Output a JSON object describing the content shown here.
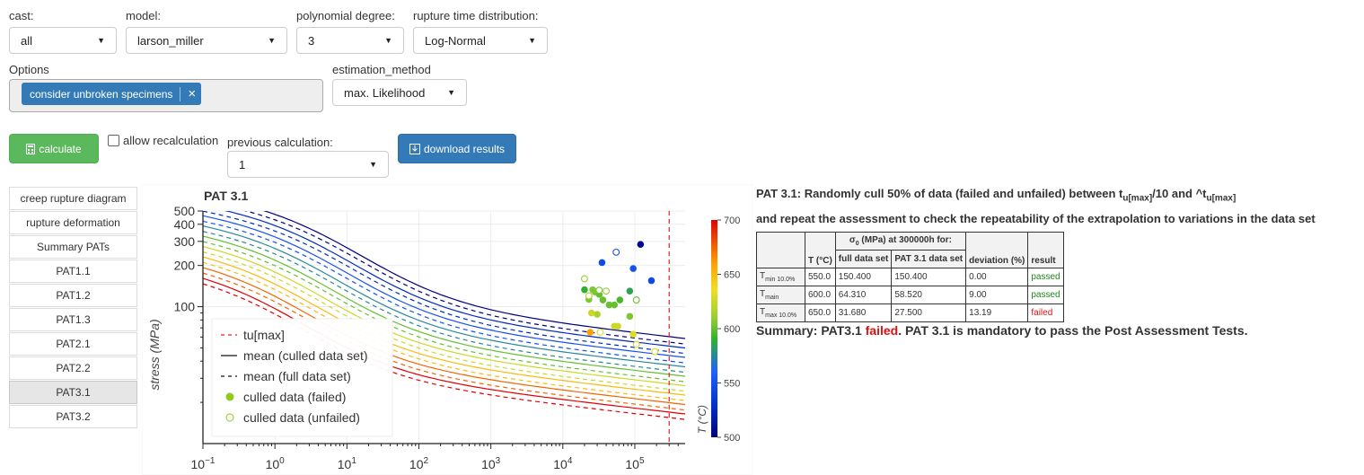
{
  "controls": {
    "cast": {
      "label": "cast:",
      "value": "all"
    },
    "model": {
      "label": "model:",
      "value": "larson_miller"
    },
    "degree": {
      "label": "polynomial degree:",
      "value": "3"
    },
    "dist": {
      "label": "rupture time distribution:",
      "value": "Log-Normal"
    },
    "options": {
      "label": "Options",
      "tag": "consider unbroken specimens",
      "tag_remove": "×"
    },
    "estimation": {
      "label": "estimation_method",
      "value": "max. Likelihood"
    },
    "calculate": "calculate",
    "allow_recalc": "allow recalculation",
    "previous": {
      "label": "previous calculation:",
      "value": "1"
    },
    "download": "download results"
  },
  "nav": [
    "creep rupture diagram",
    "rupture deformation",
    "Summary PATs",
    "PAT1.1",
    "PAT1.2",
    "PAT1.3",
    "PAT2.1",
    "PAT2.2",
    "PAT3.1",
    "PAT3.2"
  ],
  "nav_active": "PAT3.1",
  "icons": [
    "move-icon",
    "box-zoom-icon",
    "box-select-icon",
    "lasso-icon",
    "reset-icon",
    "save-icon",
    "hover-icon",
    "bokeh-logo-icon"
  ],
  "chart_data": {
    "type": "scatter",
    "title": "PAT 3.1",
    "ylabel": "stress (MPa)",
    "x_scale": "log",
    "y_scale": "log",
    "xlim": [
      0.1,
      500000
    ],
    "ylim": [
      10,
      500
    ],
    "x_ticks": [
      "10−1",
      "100",
      "101",
      "102",
      "103",
      "104",
      "105"
    ],
    "x_tick_values": [
      0.1,
      1,
      10,
      100,
      1000,
      10000,
      100000
    ],
    "y_ticks": [
      "500",
      "400",
      "300",
      "200",
      "100"
    ],
    "y_tick_values": [
      500,
      400,
      300,
      200,
      100
    ],
    "tu_max": 300000,
    "legend": [
      "tu[max]",
      "mean (culled data set)",
      "mean (full data set)",
      "culled data (failed)",
      "culled data (unfailed)"
    ],
    "colorbar": {
      "label": "T (°C)",
      "min": 500,
      "max": 700,
      "ticks": [
        700,
        650,
        600,
        550,
        500
      ]
    },
    "curve_temperatures": [
      500,
      525,
      550,
      575,
      600,
      625,
      650,
      675,
      700
    ],
    "failed_points": [
      {
        "x": 120000,
        "y": 285,
        "T": 505
      },
      {
        "x": 35000,
        "y": 210,
        "T": 545
      },
      {
        "x": 95000,
        "y": 190,
        "T": 550
      },
      {
        "x": 170000,
        "y": 155,
        "T": 545
      },
      {
        "x": 20000,
        "y": 133,
        "T": 590
      },
      {
        "x": 26000,
        "y": 133,
        "T": 605
      },
      {
        "x": 28000,
        "y": 128,
        "T": 605
      },
      {
        "x": 32000,
        "y": 123,
        "T": 600
      },
      {
        "x": 23000,
        "y": 113,
        "T": 605
      },
      {
        "x": 36000,
        "y": 112,
        "T": 600
      },
      {
        "x": 44000,
        "y": 103,
        "T": 600
      },
      {
        "x": 52000,
        "y": 103,
        "T": 600
      },
      {
        "x": 62000,
        "y": 112,
        "T": 595
      },
      {
        "x": 85000,
        "y": 130,
        "T": 585
      },
      {
        "x": 30000,
        "y": 88,
        "T": 615
      },
      {
        "x": 85000,
        "y": 85,
        "T": 605
      },
      {
        "x": 25000,
        "y": 90,
        "T": 625
      },
      {
        "x": 52000,
        "y": 72,
        "T": 625
      },
      {
        "x": 58000,
        "y": 72,
        "T": 625
      },
      {
        "x": 95000,
        "y": 63,
        "T": 630
      },
      {
        "x": 24000,
        "y": 65,
        "T": 660
      }
    ],
    "unfailed_points": [
      {
        "x": 55000,
        "y": 250,
        "T": 550
      },
      {
        "x": 20000,
        "y": 160,
        "T": 610
      },
      {
        "x": 32000,
        "y": 132,
        "T": 605
      },
      {
        "x": 40000,
        "y": 130,
        "T": 610
      },
      {
        "x": 23000,
        "y": 120,
        "T": 615
      },
      {
        "x": 105000,
        "y": 112,
        "T": 600
      },
      {
        "x": 33000,
        "y": 65,
        "T": 630
      },
      {
        "x": 105000,
        "y": 53,
        "T": 625
      },
      {
        "x": 190000,
        "y": 47,
        "T": 630
      }
    ]
  },
  "results": {
    "title_pre": "PAT 3.1: Randomly cull 50% of data (failed and unfailed) between t",
    "title_sub1": "u[max]",
    "title_mid": "/10 and ^t",
    "title_sub2": "u[max]",
    "subtitle": "and repeat the assessment to check the repeatability of the extrapolation to variations in the data set",
    "sigma_head_pre": "σ",
    "sigma_head_sub": "0",
    "sigma_head_post": " (MPa) at 300000h for:",
    "headers": [
      "T (°C)",
      "full data set",
      "PAT 3.1 data set",
      "deviation (%)",
      "result"
    ],
    "rows": [
      {
        "name": "T",
        "sub": "min 10.0%",
        "T": "550.0",
        "full": "150.400",
        "pat": "150.400",
        "dev": "0.00",
        "result": "passed"
      },
      {
        "name": "T",
        "sub": "main",
        "T": "600.0",
        "full": "64.310",
        "pat": "58.520",
        "dev": "9.00",
        "result": "passed"
      },
      {
        "name": "T",
        "sub": "max 10.0%",
        "T": "650.0",
        "full": "31.680",
        "pat": "27.500",
        "dev": "13.19",
        "result": "failed"
      }
    ],
    "summary_pre": "Summary: PAT3.1 ",
    "summary_status": "failed",
    "summary_post": ". PAT 3.1 is mandatory to pass the Post Assessment Tests."
  },
  "colors": {
    "green": "#5cb85c",
    "blue": "#337ab7",
    "failed": "#e01010",
    "passed": "#1a8a1a",
    "tag": "#337ab7"
  }
}
